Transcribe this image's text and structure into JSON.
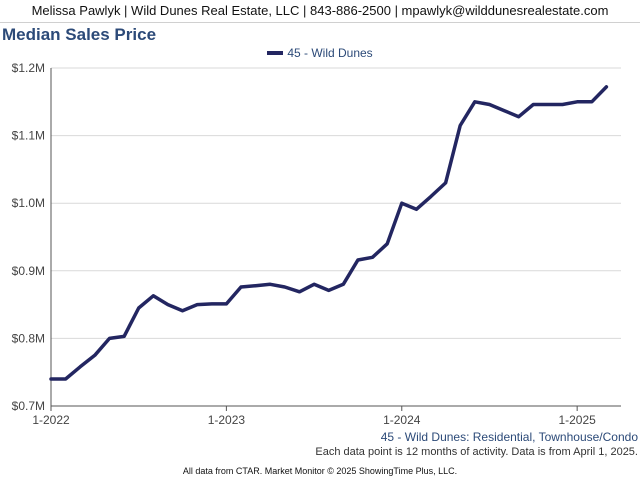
{
  "header": {
    "agent_line": "Melissa Pawlyk | Wild Dunes Real Estate, LLC | 843-886-2500 | mpawlyk@wilddunesrealestate.com"
  },
  "chart_title": "Median Sales Price",
  "legend_label": "45 - Wild Dunes",
  "subtitle_note": "45 - Wild Dunes: Residential, Townhouse/Condo",
  "data_note": "Each data point is 12 months of activity. Data is from April 1, 2025.",
  "footer": "All data from CTAR. Market Monitor © 2025 ShowingTime Plus, LLC.",
  "colors": {
    "series": "#232661",
    "grid": "#d9d9d9",
    "axis": "#555555",
    "title": "#2c4a78"
  },
  "chart_data": {
    "type": "line",
    "title": "Median Sales Price",
    "xlabel": "",
    "ylabel": "",
    "ylim": [
      700000,
      1200000
    ],
    "yticks": [
      {
        "value": 700000,
        "label": "$0.7M"
      },
      {
        "value": 800000,
        "label": "$0.8M"
      },
      {
        "value": 900000,
        "label": "$0.9M"
      },
      {
        "value": 1000000,
        "label": "$1.0M"
      },
      {
        "value": 1100000,
        "label": "$1.1M"
      },
      {
        "value": 1200000,
        "label": "$1.2M"
      }
    ],
    "xlim": [
      "2022-01",
      "2025-04"
    ],
    "xticks": [
      {
        "value": "2022-01",
        "label": "1-2022"
      },
      {
        "value": "2023-01",
        "label": "1-2023"
      },
      {
        "value": "2024-01",
        "label": "1-2024"
      },
      {
        "value": "2025-01",
        "label": "1-2025"
      }
    ],
    "grid": true,
    "legend_position": "top-center",
    "series": [
      {
        "name": "45 - Wild Dunes",
        "x": [
          "2022-01",
          "2022-02",
          "2022-03",
          "2022-04",
          "2022-05",
          "2022-06",
          "2022-07",
          "2022-08",
          "2022-09",
          "2022-10",
          "2022-11",
          "2022-12",
          "2023-01",
          "2023-02",
          "2023-03",
          "2023-04",
          "2023-05",
          "2023-06",
          "2023-07",
          "2023-08",
          "2023-09",
          "2023-10",
          "2023-11",
          "2023-12",
          "2024-01",
          "2024-02",
          "2024-03",
          "2024-04",
          "2024-05",
          "2024-06",
          "2024-07",
          "2024-08",
          "2024-09",
          "2024-10",
          "2024-11",
          "2024-12",
          "2025-01",
          "2025-02",
          "2025-03"
        ],
        "values": [
          740000,
          740000,
          758000,
          775000,
          800000,
          803000,
          845000,
          863000,
          850000,
          841000,
          850000,
          851000,
          851000,
          876000,
          878000,
          880000,
          876000,
          869000,
          880000,
          871000,
          880000,
          916000,
          920000,
          940000,
          1000000,
          991000,
          1010000,
          1030000,
          1115000,
          1150000,
          1146000,
          1137000,
          1128000,
          1146000,
          1146000,
          1146000,
          1150000,
          1150000,
          1172000
        ]
      }
    ]
  }
}
